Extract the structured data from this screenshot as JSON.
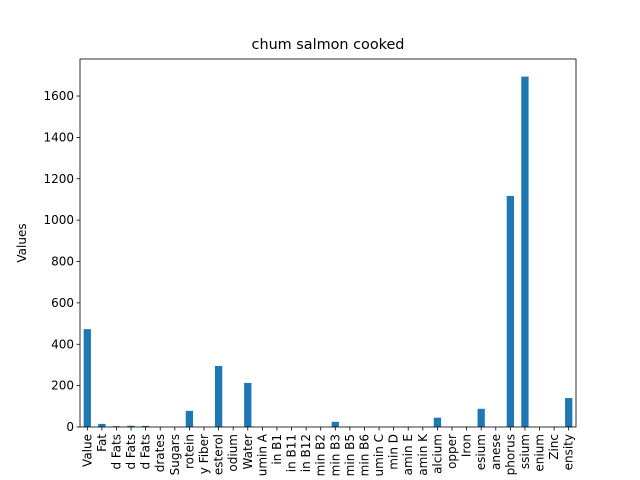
{
  "chart_data": {
    "type": "bar",
    "title": "chum salmon cooked",
    "ylabel": "Values",
    "categories": [
      "Value",
      "Fat",
      "d Fats",
      "d Fats",
      "d Fats",
      "drates",
      "Sugars",
      "rotein",
      "y Fiber",
      "esterol",
      "odium",
      "Water",
      "umin A",
      "in B1",
      "in B11",
      "in B12",
      "min B2",
      "min B3",
      "min B5",
      "min B6",
      "umin C",
      "min D",
      "amin E",
      "amin K",
      "alcium",
      "opper",
      "Iron",
      "esium",
      "anese",
      "phorus",
      "ssium",
      "enium",
      "Zinc",
      "ensity"
    ],
    "values": [
      473,
      15,
      4,
      6,
      5,
      0,
      0,
      78,
      0,
      295,
      1,
      213,
      0,
      0,
      0,
      0,
      0,
      25,
      1,
      0,
      0,
      0,
      1,
      0,
      45,
      0,
      1,
      88,
      0,
      1117,
      1694,
      0,
      1,
      140
    ],
    "color": "#1f77b4",
    "ylim": [
      0,
      1779
    ],
    "yticks": [
      0,
      200,
      400,
      600,
      800,
      1000,
      1200,
      1400,
      1600
    ],
    "grid": false
  }
}
